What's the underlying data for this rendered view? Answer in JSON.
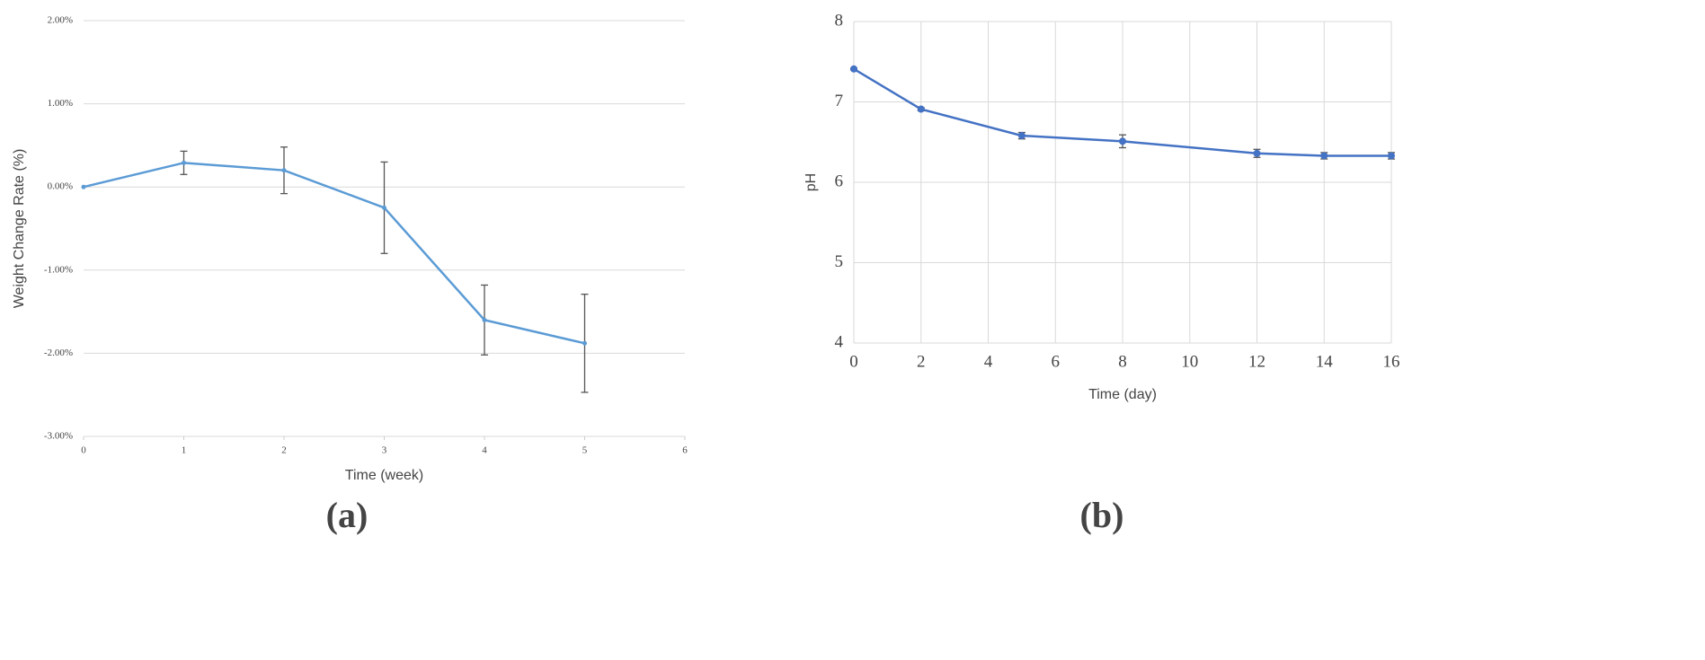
{
  "chart_data": [
    {
      "type": "line",
      "panel_label": "(a)",
      "x_label": "Time (week)",
      "y_label": "Weight Change Rate (%)",
      "x": [
        0,
        1,
        2,
        3,
        4,
        5
      ],
      "series": [
        {
          "color": "#5b9bd5",
          "values": [
            0,
            0.29,
            0.2,
            -0.25,
            -1.6,
            -1.88
          ],
          "errors": [
            null,
            0.14,
            0.28,
            0.55,
            0.42,
            0.59
          ]
        }
      ],
      "xlim": [
        0,
        6
      ],
      "xticks": [
        0,
        1,
        2,
        3,
        4,
        5,
        6
      ],
      "ylim": [
        -3,
        2
      ],
      "yticks": [
        {
          "value": -3,
          "label": "-3.00%"
        },
        {
          "value": -2,
          "label": "-2.00%"
        },
        {
          "value": -1,
          "label": "-1.00%"
        },
        {
          "value": 0,
          "label": "0.00%"
        },
        {
          "value": 1,
          "label": "1.00%"
        },
        {
          "value": 2,
          "label": "2.00%"
        }
      ],
      "grid": "y"
    },
    {
      "type": "line",
      "panel_label": "(b)",
      "x_label": "Time (day)",
      "y_label": "pH",
      "x": [
        0,
        2,
        5,
        8,
        12,
        14,
        16
      ],
      "series": [
        {
          "color": "#4472c4",
          "values": [
            7.41,
            6.91,
            6.58,
            6.51,
            6.36,
            6.33,
            6.33
          ],
          "errors": [
            0.01,
            0.02,
            0.04,
            0.08,
            0.05,
            0.04,
            0.04
          ]
        }
      ],
      "xlim": [
        0,
        16
      ],
      "xticks": [
        0,
        2,
        4,
        6,
        8,
        10,
        12,
        14,
        16
      ],
      "ylim": [
        4,
        8
      ],
      "yticks": [
        4,
        5,
        6,
        7,
        8
      ],
      "grid": "both"
    }
  ]
}
